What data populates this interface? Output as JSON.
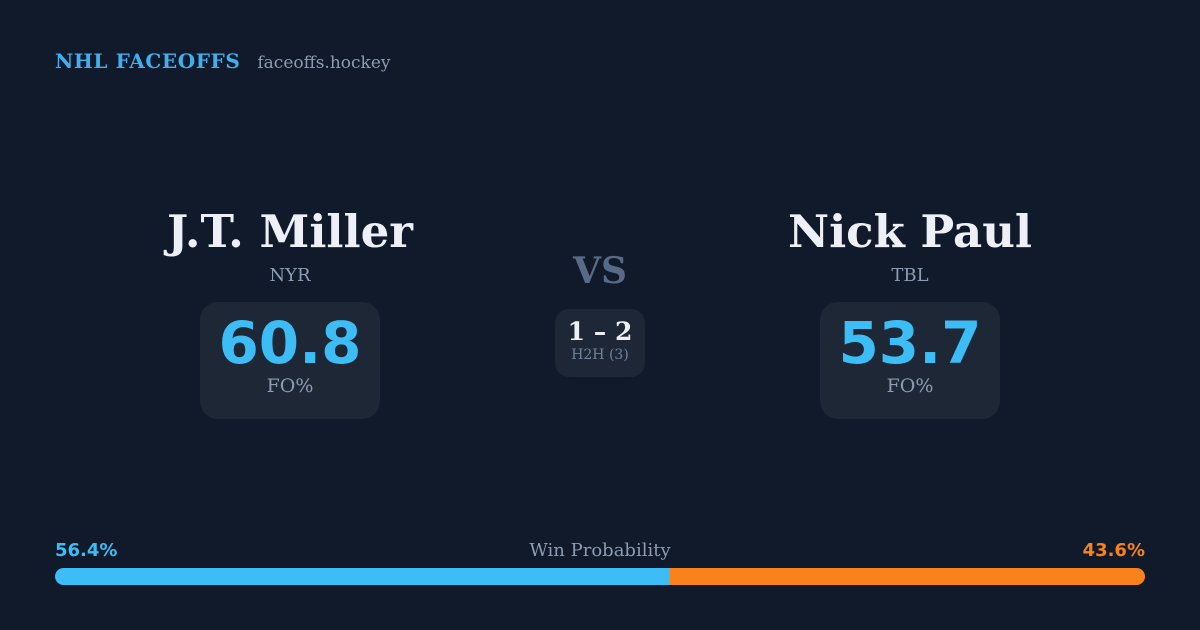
{
  "header": {
    "brand": "NHL FACEOFFS",
    "domain": "faceoffs.hockey"
  },
  "players": {
    "left": {
      "name": "J.T. Miller",
      "team": "NYR",
      "stat_value": "60.8",
      "stat_label": "FO%"
    },
    "right": {
      "name": "Nick Paul",
      "team": "TBL",
      "stat_value": "53.7",
      "stat_label": "FO%"
    }
  },
  "versus": {
    "label": "VS",
    "h2h_score": "1 – 2",
    "h2h_label": "H2H (3)"
  },
  "win_probability": {
    "title": "Win Probability",
    "left_pct_label": "56.4%",
    "right_pct_label": "43.6%",
    "left_value": 56.4,
    "right_value": 43.6
  },
  "colors": {
    "background": "#111a2b",
    "card": "#1d2736",
    "brand_blue": "#41aeee",
    "accent_blue": "#3cbdf6",
    "accent_orange": "#f9821a",
    "text_primary": "#edf1f7",
    "text_muted": "#8d9cb2",
    "vs_color": "#586a85",
    "h2h_label_color": "#72829b"
  }
}
